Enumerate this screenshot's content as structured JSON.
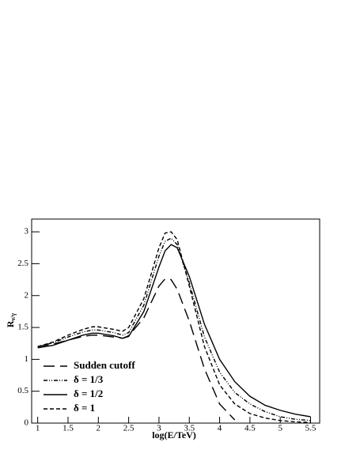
{
  "chart_data": {
    "type": "line",
    "xlabel": "log(E/TeV)",
    "ylabel": "R",
    "ylabel_sub": "ν/γ",
    "x": [
      1,
      1.25,
      1.5,
      1.75,
      1.9,
      2,
      2.25,
      2.4,
      2.5,
      2.75,
      3,
      3.1,
      3.2,
      3.3,
      3.5,
      3.75,
      4,
      4.25,
      4.5,
      4.75,
      5,
      5.25,
      5.5
    ],
    "series": [
      {
        "name": "Sudden cutoff",
        "color": "#000000",
        "dash": "14,7",
        "values": [
          1.2,
          1.24,
          1.3,
          1.36,
          1.38,
          1.38,
          1.35,
          1.33,
          1.37,
          1.65,
          2.15,
          2.26,
          2.25,
          2.1,
          1.6,
          0.85,
          0.3,
          0.05,
          null,
          null,
          null,
          null,
          null
        ]
      },
      {
        "name": "δ = 1/3",
        "color": "#000000",
        "dash": "5,2,1,2,1,2",
        "values": [
          1.2,
          1.26,
          1.35,
          1.43,
          1.46,
          1.46,
          1.42,
          1.38,
          1.42,
          1.85,
          2.62,
          2.85,
          2.9,
          2.8,
          2.2,
          1.35,
          0.8,
          0.48,
          0.3,
          0.18,
          0.1,
          0.06,
          0.04
        ]
      },
      {
        "name": "δ = 1/2",
        "color": "#000000",
        "dash": "",
        "values": [
          1.18,
          1.22,
          1.3,
          1.38,
          1.41,
          1.41,
          1.37,
          1.33,
          1.36,
          1.75,
          2.45,
          2.7,
          2.8,
          2.75,
          2.3,
          1.55,
          1.0,
          0.65,
          0.42,
          0.28,
          0.2,
          0.14,
          0.1
        ]
      },
      {
        "name": "δ = 1",
        "color": "#000000",
        "dash": "5,3",
        "values": [
          1.2,
          1.27,
          1.38,
          1.47,
          1.51,
          1.51,
          1.47,
          1.44,
          1.5,
          1.95,
          2.75,
          2.98,
          3.0,
          2.88,
          2.15,
          1.2,
          0.6,
          0.3,
          0.15,
          0.08,
          0.04,
          0.02,
          0.01
        ]
      }
    ],
    "xlim": [
      0.9,
      5.65
    ],
    "ylim": [
      0,
      3.2
    ],
    "xticks": [
      1,
      1.5,
      2,
      2.5,
      3,
      3.5,
      4,
      4.5,
      5,
      5.5
    ],
    "yticks": [
      0,
      0.5,
      1,
      1.5,
      2,
      2.5,
      3
    ],
    "legend": "lower-left"
  }
}
